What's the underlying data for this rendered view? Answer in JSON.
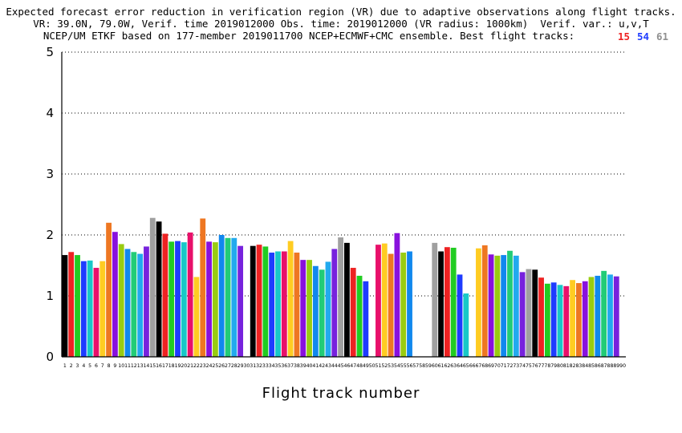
{
  "title": {
    "line1": "Expected forecast error reduction in verification region (VR) due to adaptive observations along flight tracks.",
    "line2": "VR: 39.0N, 79.0W, Verif. time 2019012000 Obs. time: 2019012000 (VR radius: 1000km)  Verif. var.: u,v,T",
    "line3": "NCEP/UM ETKF based on 177-member 2019011700 NCEP+ECMWF+CMC ensemble. Best flight tracks:"
  },
  "best_tracks": [
    {
      "value": "15",
      "color": "#ee2222"
    },
    {
      "value": "54",
      "color": "#1e3cff"
    },
    {
      "value": "61",
      "color": "#909090"
    }
  ],
  "chart_data": {
    "type": "bar",
    "xlabel": "Flight track number",
    "ylabel": "",
    "ylim": [
      0,
      5
    ],
    "yticks": [
      0,
      1,
      2,
      3,
      4,
      5
    ],
    "grid": "horizontal dotted",
    "categories": [
      "1",
      "2",
      "3",
      "4",
      "5",
      "6",
      "7",
      "8",
      "9",
      "10",
      "11",
      "12",
      "13",
      "14",
      "15",
      "16",
      "17",
      "18",
      "19",
      "20",
      "21",
      "22",
      "23",
      "24",
      "25",
      "26",
      "27",
      "28",
      "29",
      "30",
      "31",
      "32",
      "33",
      "34",
      "35",
      "36",
      "37",
      "38",
      "39",
      "40",
      "41",
      "42",
      "43",
      "44",
      "45",
      "46",
      "47",
      "48",
      "49",
      "50",
      "51",
      "52",
      "53",
      "54",
      "55",
      "56",
      "57",
      "58",
      "59",
      "60",
      "61",
      "62",
      "63",
      "64",
      "65",
      "66",
      "67",
      "68",
      "69",
      "70",
      "71",
      "72",
      "73",
      "74",
      "75",
      "76",
      "77",
      "78",
      "79",
      "80",
      "81",
      "82",
      "83",
      "84",
      "85",
      "86",
      "87",
      "88",
      "89",
      "90"
    ],
    "values": [
      1.67,
      1.72,
      1.67,
      1.57,
      1.58,
      1.46,
      1.57,
      2.2,
      2.05,
      1.85,
      1.77,
      1.72,
      1.69,
      1.81,
      2.28,
      2.22,
      2.02,
      1.89,
      1.9,
      1.88,
      2.04,
      1.31,
      2.27,
      1.89,
      1.88,
      2.0,
      1.95,
      1.95,
      1.82,
      0,
      1.82,
      1.84,
      1.81,
      1.71,
      1.73,
      1.73,
      1.9,
      1.71,
      1.59,
      1.59,
      1.49,
      1.43,
      1.56,
      1.77,
      1.96,
      1.87,
      1.46,
      1.33,
      1.24,
      0,
      1.84,
      1.86,
      1.69,
      2.03,
      1.71,
      1.73,
      0,
      0,
      0,
      1.87,
      1.73,
      1.8,
      1.79,
      1.35,
      1.04,
      0,
      1.78,
      1.83,
      1.68,
      1.66,
      1.67,
      1.74,
      1.66,
      1.39,
      1.44,
      1.43,
      1.3,
      1.2,
      1.22,
      1.18,
      1.16,
      1.26,
      1.21,
      1.24,
      1.31,
      1.33,
      1.41,
      1.35,
      1.32,
      0
    ],
    "colors": [
      "#000000",
      "#ee2222",
      "#22cc22",
      "#1e3cff",
      "#18c8c8",
      "#e8106a",
      "#ffcc22",
      "#ee7722",
      "#8811dd",
      "#99cc11",
      "#1188ee",
      "#22cc77",
      "#22aaee",
      "#7722dd",
      "#a0a0a0"
    ]
  }
}
